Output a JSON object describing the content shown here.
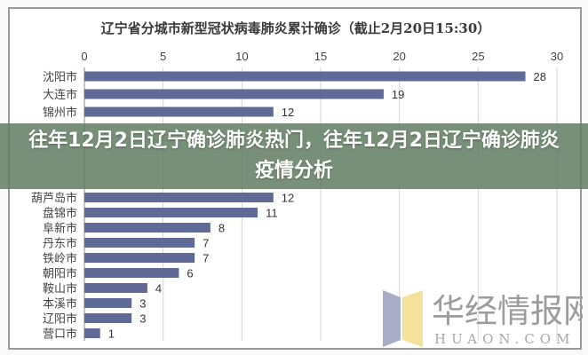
{
  "chart_data": {
    "type": "bar",
    "orientation": "horizontal",
    "title": "辽宁省分城市新型冠状病毒肺炎累计确诊（截止2月20日15:30）",
    "categories": [
      "沈阳市",
      "大连市",
      "锦州市",
      "葫芦岛市",
      "盘锦市",
      "阜新市",
      "丹东市",
      "铁岭市",
      "朝阳市",
      "鞍山市",
      "本溪市",
      "辽阳市",
      "营口市"
    ],
    "values": [
      28,
      19,
      12,
      12,
      11,
      8,
      7,
      7,
      6,
      4,
      3,
      3,
      1
    ],
    "xlim": [
      0,
      30
    ],
    "xticks": [
      0,
      5,
      10,
      15,
      20,
      25,
      30
    ],
    "xaxis_position": "top",
    "grid": true,
    "bar_color": "#5f6b96"
  },
  "banner": {
    "text": "往年12月2日辽宁确诊肺炎热门，往年12月2日辽宁确诊肺炎疫情分析"
  },
  "watermark": {
    "name": "华经情报网",
    "domain": "HUAON.COM"
  }
}
